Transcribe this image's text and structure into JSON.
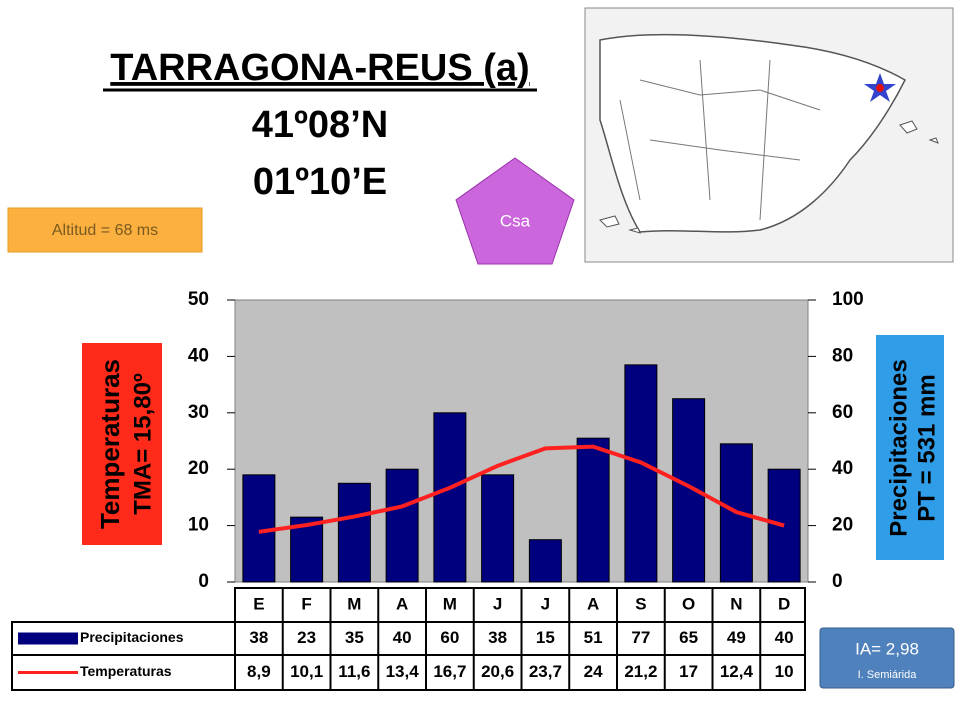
{
  "header": {
    "title": "TARRAGONA-REUS (a)",
    "latitude": "41º08’N",
    "longitude": "01º10’E"
  },
  "altitude": "Altitud = 68 ms",
  "climate_class": "Csa",
  "aridity": {
    "index": "IA= 2,98",
    "label": "I. Semiárida"
  },
  "chart_data": {
    "type": "bar",
    "ylabel": "Temperaturas",
    "ylabel_note": "TMA= 15,80º",
    "y2label": "Precipitaciones",
    "y2label_note": "PT = 531 mm",
    "categories": [
      "E",
      "F",
      "M",
      "A",
      "M",
      "J",
      "J",
      "A",
      "S",
      "O",
      "N",
      "D"
    ],
    "series": [
      {
        "name": "Precipitaciones",
        "color": "#00007f",
        "axis": "y2",
        "mark": "bar",
        "values": [
          38,
          23,
          35,
          40,
          60,
          38,
          15,
          51,
          77,
          65,
          49,
          40
        ]
      },
      {
        "name": "Temperaturas",
        "color": "#ff2020",
        "mark": "line",
        "values": [
          8.9,
          10.1,
          11.6,
          13.4,
          16.7,
          20.6,
          23.7,
          24,
          21.2,
          17,
          12.4,
          10
        ],
        "value_labels": [
          "8,9",
          "10,1",
          "11,6",
          "13,4",
          "16,7",
          "20,6",
          "23,7",
          "24",
          "21,2",
          "17",
          "12,4",
          "10"
        ]
      }
    ],
    "ylim": [
      0,
      50
    ],
    "yticks": [
      0,
      10,
      20,
      30,
      40,
      50
    ],
    "y2lim": [
      0,
      100
    ],
    "y2ticks": [
      0,
      20,
      40,
      60,
      80,
      100
    ],
    "grid": false
  }
}
